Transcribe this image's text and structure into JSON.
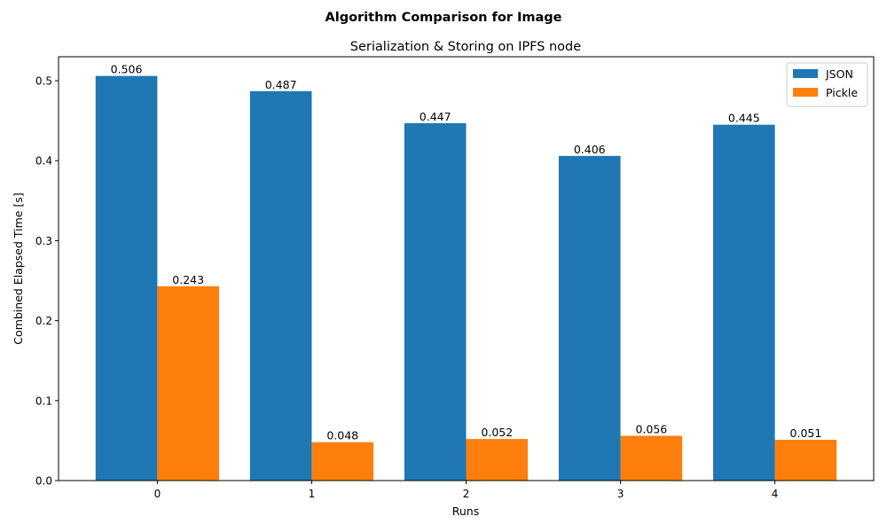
{
  "chart_data": {
    "type": "bar",
    "suptitle": "Algorithm Comparison for Image",
    "title": "Serialization & Storing on IPFS node",
    "xlabel": "Runs",
    "ylabel": "Combined Elapsed Time [s]",
    "categories": [
      "0",
      "1",
      "2",
      "3",
      "4"
    ],
    "ylim": [
      0,
      0.53
    ],
    "yticks": [
      "0.0",
      "0.1",
      "0.2",
      "0.3",
      "0.4",
      "0.5"
    ],
    "grid": false,
    "legend_position": "top-right",
    "series": [
      {
        "name": "JSON",
        "color": "#1f77b4",
        "values": [
          0.506,
          0.487,
          0.447,
          0.406,
          0.445
        ],
        "labels": [
          "0.506",
          "0.487",
          "0.447",
          "0.406",
          "0.445"
        ]
      },
      {
        "name": "Pickle",
        "color": "#ff7f0e",
        "values": [
          0.243,
          0.048,
          0.052,
          0.056,
          0.051
        ],
        "labels": [
          "0.243",
          "0.048",
          "0.052",
          "0.056",
          "0.051"
        ]
      }
    ]
  }
}
